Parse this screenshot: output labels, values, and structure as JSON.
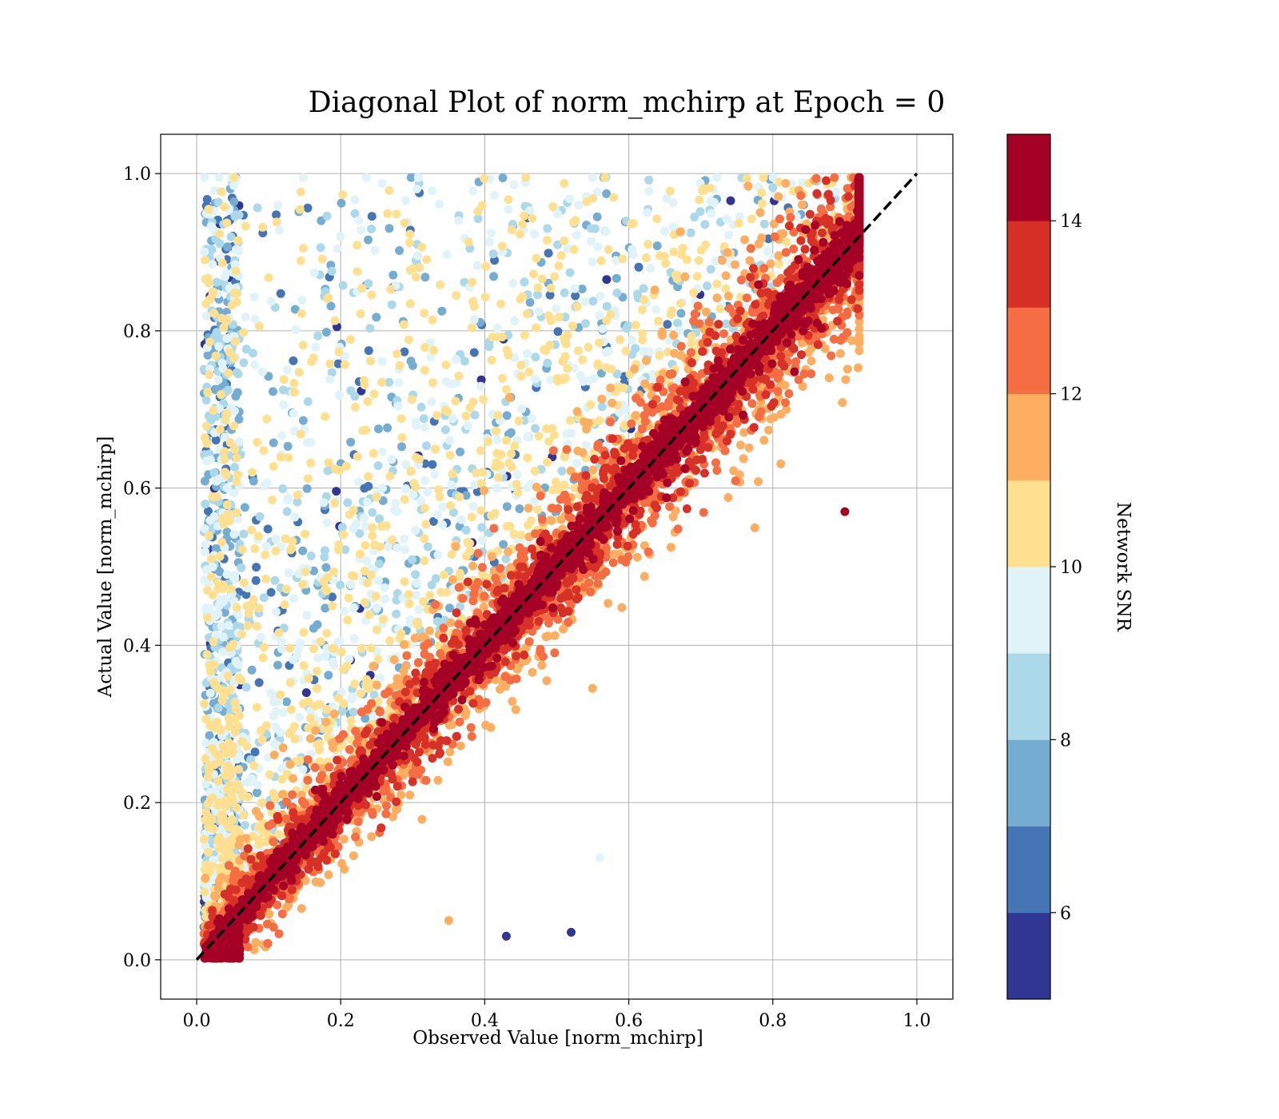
{
  "chart_data": {
    "type": "scatter",
    "title": "Diagonal Plot of norm_mchirp at Epoch = 0",
    "xlabel": "Observed Value [norm_mchirp]",
    "ylabel": "Actual Value [norm_mchirp]",
    "xlim": [
      -0.05,
      1.05
    ],
    "ylim": [
      -0.05,
      1.05
    ],
    "xticks": [
      "0.0",
      "0.2",
      "0.4",
      "0.6",
      "0.8",
      "1.0"
    ],
    "yticks": [
      "0.0",
      "0.2",
      "0.4",
      "0.6",
      "0.8",
      "1.0"
    ],
    "grid": true,
    "reference_line": {
      "style": "dashed",
      "color": "#000000",
      "from": [
        0,
        0
      ],
      "to": [
        1,
        1
      ]
    },
    "colorbar": {
      "label": "Network SNR",
      "range": [
        5,
        15
      ],
      "ticks": [
        "6",
        "8",
        "10",
        "12",
        "14"
      ],
      "colormap": "RdYlBu_r (discrete, 10 levels)",
      "colors": [
        "#313695",
        "#4575b4",
        "#74add1",
        "#abd9e9",
        "#e0f3f8",
        "#fee090",
        "#fdae61",
        "#f46d43",
        "#d73027",
        "#a50026"
      ]
    },
    "points_description": "tens of thousands of points; high-SNR points (dark red) cluster tightly on the diagonal from (0,0) to (0.9,0.95); low-SNR points (blue) spread upward toward low observed / high actual values near x 0.02–0.25",
    "highlight_points": [
      {
        "x": 0.43,
        "y": 0.03,
        "snr": 5.2
      },
      {
        "x": 0.52,
        "y": 0.035,
        "snr": 5.2
      },
      {
        "x": 0.35,
        "y": 0.05,
        "snr": 11.5
      },
      {
        "x": 0.56,
        "y": 0.13,
        "snr": 9.5
      },
      {
        "x": 0.9,
        "y": 0.57,
        "snr": 15
      }
    ]
  }
}
